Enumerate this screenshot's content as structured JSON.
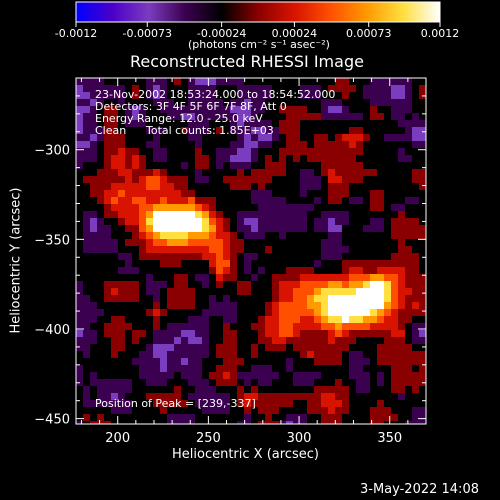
{
  "chart_data": {
    "type": "heatmap",
    "title": "Reconstructed RHESSI Image",
    "xlabel": "Heliocentric X (arcsec)",
    "ylabel": "Heliocentric Y (arcsec)",
    "xlim": [
      177,
      370
    ],
    "ylim": [
      -453,
      -260
    ],
    "x_ticks": [
      200,
      250,
      300,
      350
    ],
    "y_ticks": [
      -300,
      -350,
      -400,
      -450
    ],
    "colorbar": {
      "range": [
        -0.0012,
        0.0012
      ],
      "ticks": [
        "-0.0012",
        "-0.00073",
        "-0.00024",
        "0.00024",
        "0.00073",
        "0.0012"
      ],
      "units": "(photons cm⁻² s⁻¹ asec⁻²)",
      "colormap": [
        "#0000ff",
        "#4b00c8",
        "#7a3dbf",
        "#3b0050",
        "#000000",
        "#8a0000",
        "#d81400",
        "#ff5000",
        "#ff9a00",
        "#ffe040",
        "#ffffff"
      ]
    },
    "annotations": {
      "time": "23-Nov-2002 18:53:24.000 to 18:54:52.000",
      "detectors": "Detectors: 3F 4F 5F 6F 7F 8F, Att 0",
      "energy": "Energy Range: 12.0 - 25.0 keV",
      "method": "Clean",
      "counts": "Total counts: 1.85E+03",
      "peak": "Position of Peak = [239,-337]"
    },
    "sources": [
      {
        "x": 239,
        "y": -337,
        "value": 0.0012
      },
      {
        "x": 222,
        "y": -345,
        "value": 0.0009
      },
      {
        "x": 210,
        "y": -325,
        "value": 0.0006
      },
      {
        "x": 255,
        "y": -355,
        "value": 0.0007
      },
      {
        "x": 195,
        "y": -320,
        "value": 0.00045
      },
      {
        "x": 335,
        "y": -385,
        "value": 0.0011
      },
      {
        "x": 318,
        "y": -390,
        "value": 0.0009
      },
      {
        "x": 350,
        "y": -380,
        "value": 0.00085
      },
      {
        "x": 290,
        "y": -395,
        "value": 0.0006
      },
      {
        "x": 300,
        "y": -375,
        "value": 0.00045
      },
      {
        "x": 320,
        "y": -305,
        "value": 0.0005
      },
      {
        "x": 345,
        "y": -300,
        "value": 0.0004
      },
      {
        "x": 200,
        "y": -395,
        "value": 0.0004
      },
      {
        "x": 240,
        "y": -385,
        "value": 0.00035
      },
      {
        "x": 320,
        "y": -435,
        "value": 0.0004
      },
      {
        "x": 360,
        "y": -440,
        "value": 0.00035
      },
      {
        "x": 270,
        "y": -430,
        "value": 0.0003
      },
      {
        "x": 225,
        "y": -440,
        "value": 0.00025
      }
    ]
  },
  "footer": {
    "date": "3-May-2022 14:08"
  }
}
